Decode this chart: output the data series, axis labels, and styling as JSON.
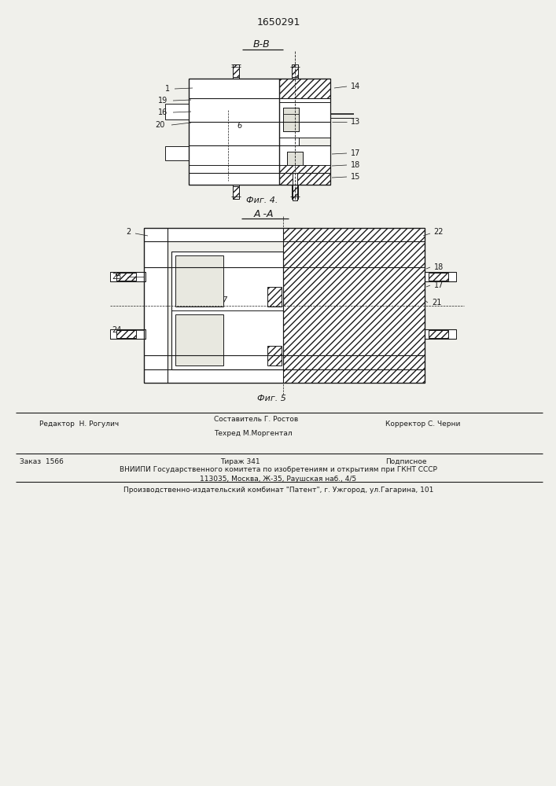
{
  "patent_number": "1650291",
  "fig4_label": "Фиг. 4.",
  "fig5_label": "Фиг. 5",
  "view_b_label": "В-В",
  "view_a_label": "А -А",
  "footer_line1_left": "Редактор  Н. Рогулич",
  "footer_line1_mid": "Составитель Г. Ростов",
  "footer_line1_right": "Корректор С. Черни",
  "footer_line2_mid": "Техред М.Моргентал",
  "footer_line3_left": "Заказ  1566",
  "footer_line3_mid": "Тираж 341",
  "footer_line3_right": "Подписное",
  "footer_line4": "ВНИИПИ Государственного комитета по изобретениям и открытиям при ГКНТ СССР",
  "footer_line5": "113035, Москва, Ж-35, Раушская наб., 4/5",
  "footer_line6": "Производственно-издательский комбинат \"Патент\", г. Ужгород, ул.Гагарина, 101",
  "bg_color": "#f0f0eb",
  "line_color": "#1a1a1a",
  "text_color": "#1a1a1a"
}
